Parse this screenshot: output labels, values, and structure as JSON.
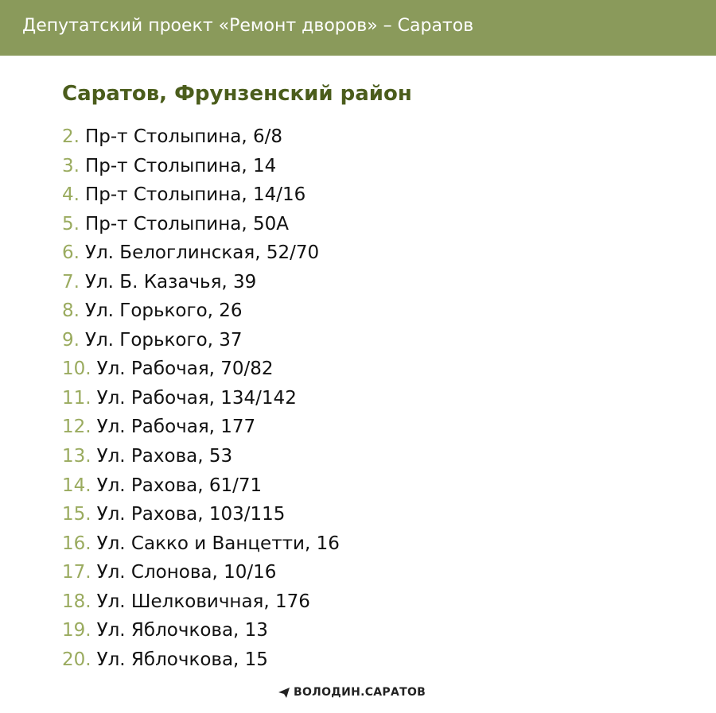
{
  "header": {
    "title": "Депутатский проект «Ремонт дворов» – Саратов"
  },
  "heading": "Саратов, Фрунзенский район",
  "items": [
    {
      "number": "2.",
      "text": "Пр-т Столыпина, 6/8"
    },
    {
      "number": "3.",
      "text": "Пр-т Столыпина, 14"
    },
    {
      "number": "4.",
      "text": "Пр-т Столыпина, 14/16"
    },
    {
      "number": "5.",
      "text": "Пр-т Столыпина, 50А"
    },
    {
      "number": "6.",
      "text": "Ул. Белоглинская, 52/70"
    },
    {
      "number": "7.",
      "text": "Ул. Б. Казачья, 39"
    },
    {
      "number": "8.",
      "text": "Ул. Горького, 26"
    },
    {
      "number": "9.",
      "text": "Ул. Горького, 37"
    },
    {
      "number": "10.",
      "text": "Ул. Рабочая, 70/82"
    },
    {
      "number": "11.",
      "text": "Ул. Рабочая, 134/142"
    },
    {
      "number": "12.",
      "text": "Ул. Рабочая, 177"
    },
    {
      "number": "13.",
      "text": "Ул. Рахова, 53"
    },
    {
      "number": "14.",
      "text": "Ул. Рахова, 61/71"
    },
    {
      "number": "15.",
      "text": "Ул. Рахова, 103/115"
    },
    {
      "number": "16.",
      "text": "Ул. Сакко и Ванцетти, 16"
    },
    {
      "number": "17.",
      "text": "Ул. Слонова, 10/16"
    },
    {
      "number": "18.",
      "text": "Ул. Шелковичная, 176"
    },
    {
      "number": "19.",
      "text": "Ул. Яблочкова, 13"
    },
    {
      "number": "20.",
      "text": "Ул. Яблочкова, 15"
    }
  ],
  "footer": {
    "brand": "ВОЛОДИН.САРАТОВ"
  }
}
